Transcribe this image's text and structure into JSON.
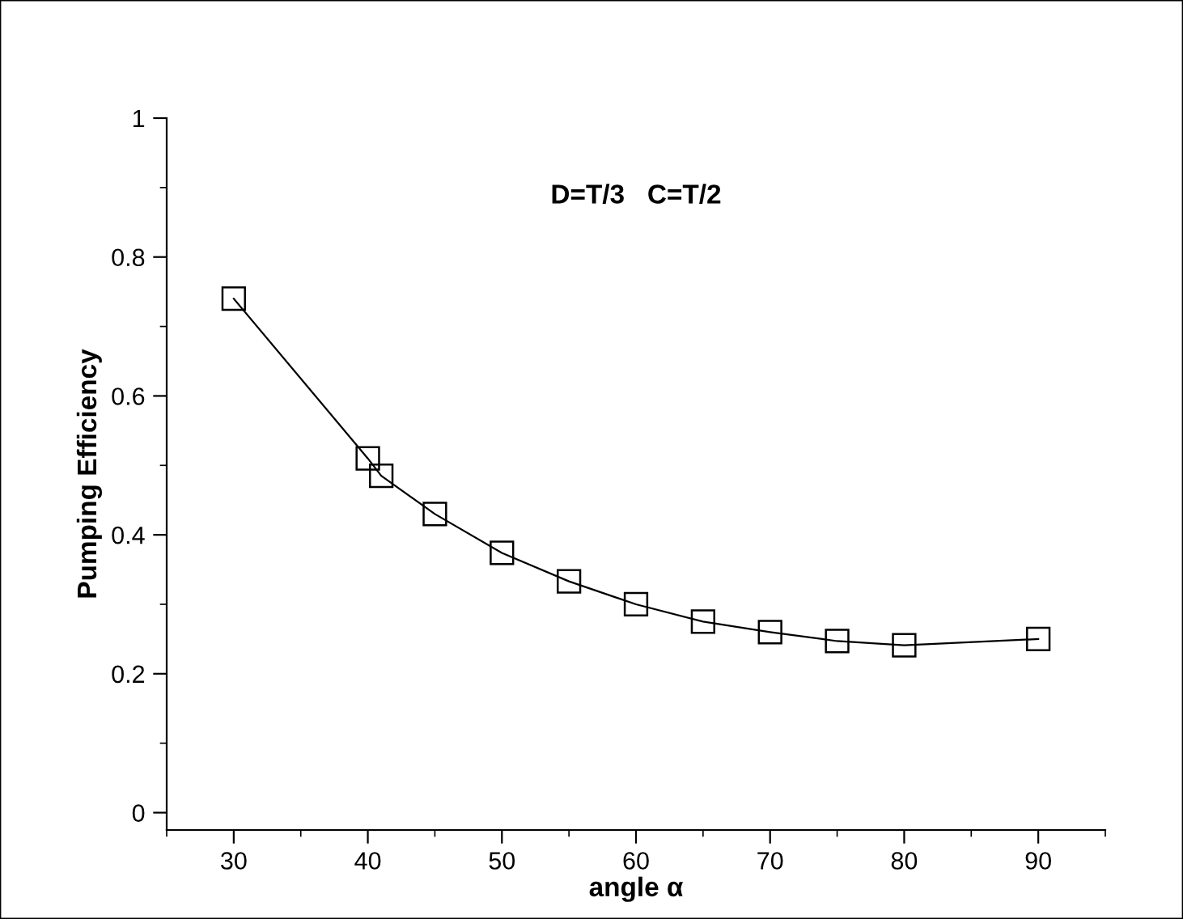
{
  "chart_data": {
    "type": "line",
    "xlabel": "angle α",
    "ylabel": "Pumping Efficiency",
    "annotations": [
      "D=T/3   C=T/2"
    ],
    "x": [
      30,
      40,
      41,
      45,
      50,
      55,
      60,
      65,
      70,
      75,
      80,
      90
    ],
    "series": [
      {
        "color": "#000000",
        "values": [
          0.74,
          0.51,
          0.485,
          0.43,
          0.374,
          0.333,
          0.3,
          0.275,
          0.26,
          0.247,
          0.241,
          0.25
        ]
      }
    ],
    "marker": "square",
    "line_style": "solid",
    "grid": false,
    "legend": false,
    "xlim": [
      25,
      95
    ],
    "xticks": [
      30,
      40,
      50,
      60,
      70,
      80,
      90
    ],
    "ylim": [
      -0.025,
      1
    ],
    "yticks": [
      0,
      0.2,
      0.4,
      0.6,
      0.8,
      1
    ]
  }
}
